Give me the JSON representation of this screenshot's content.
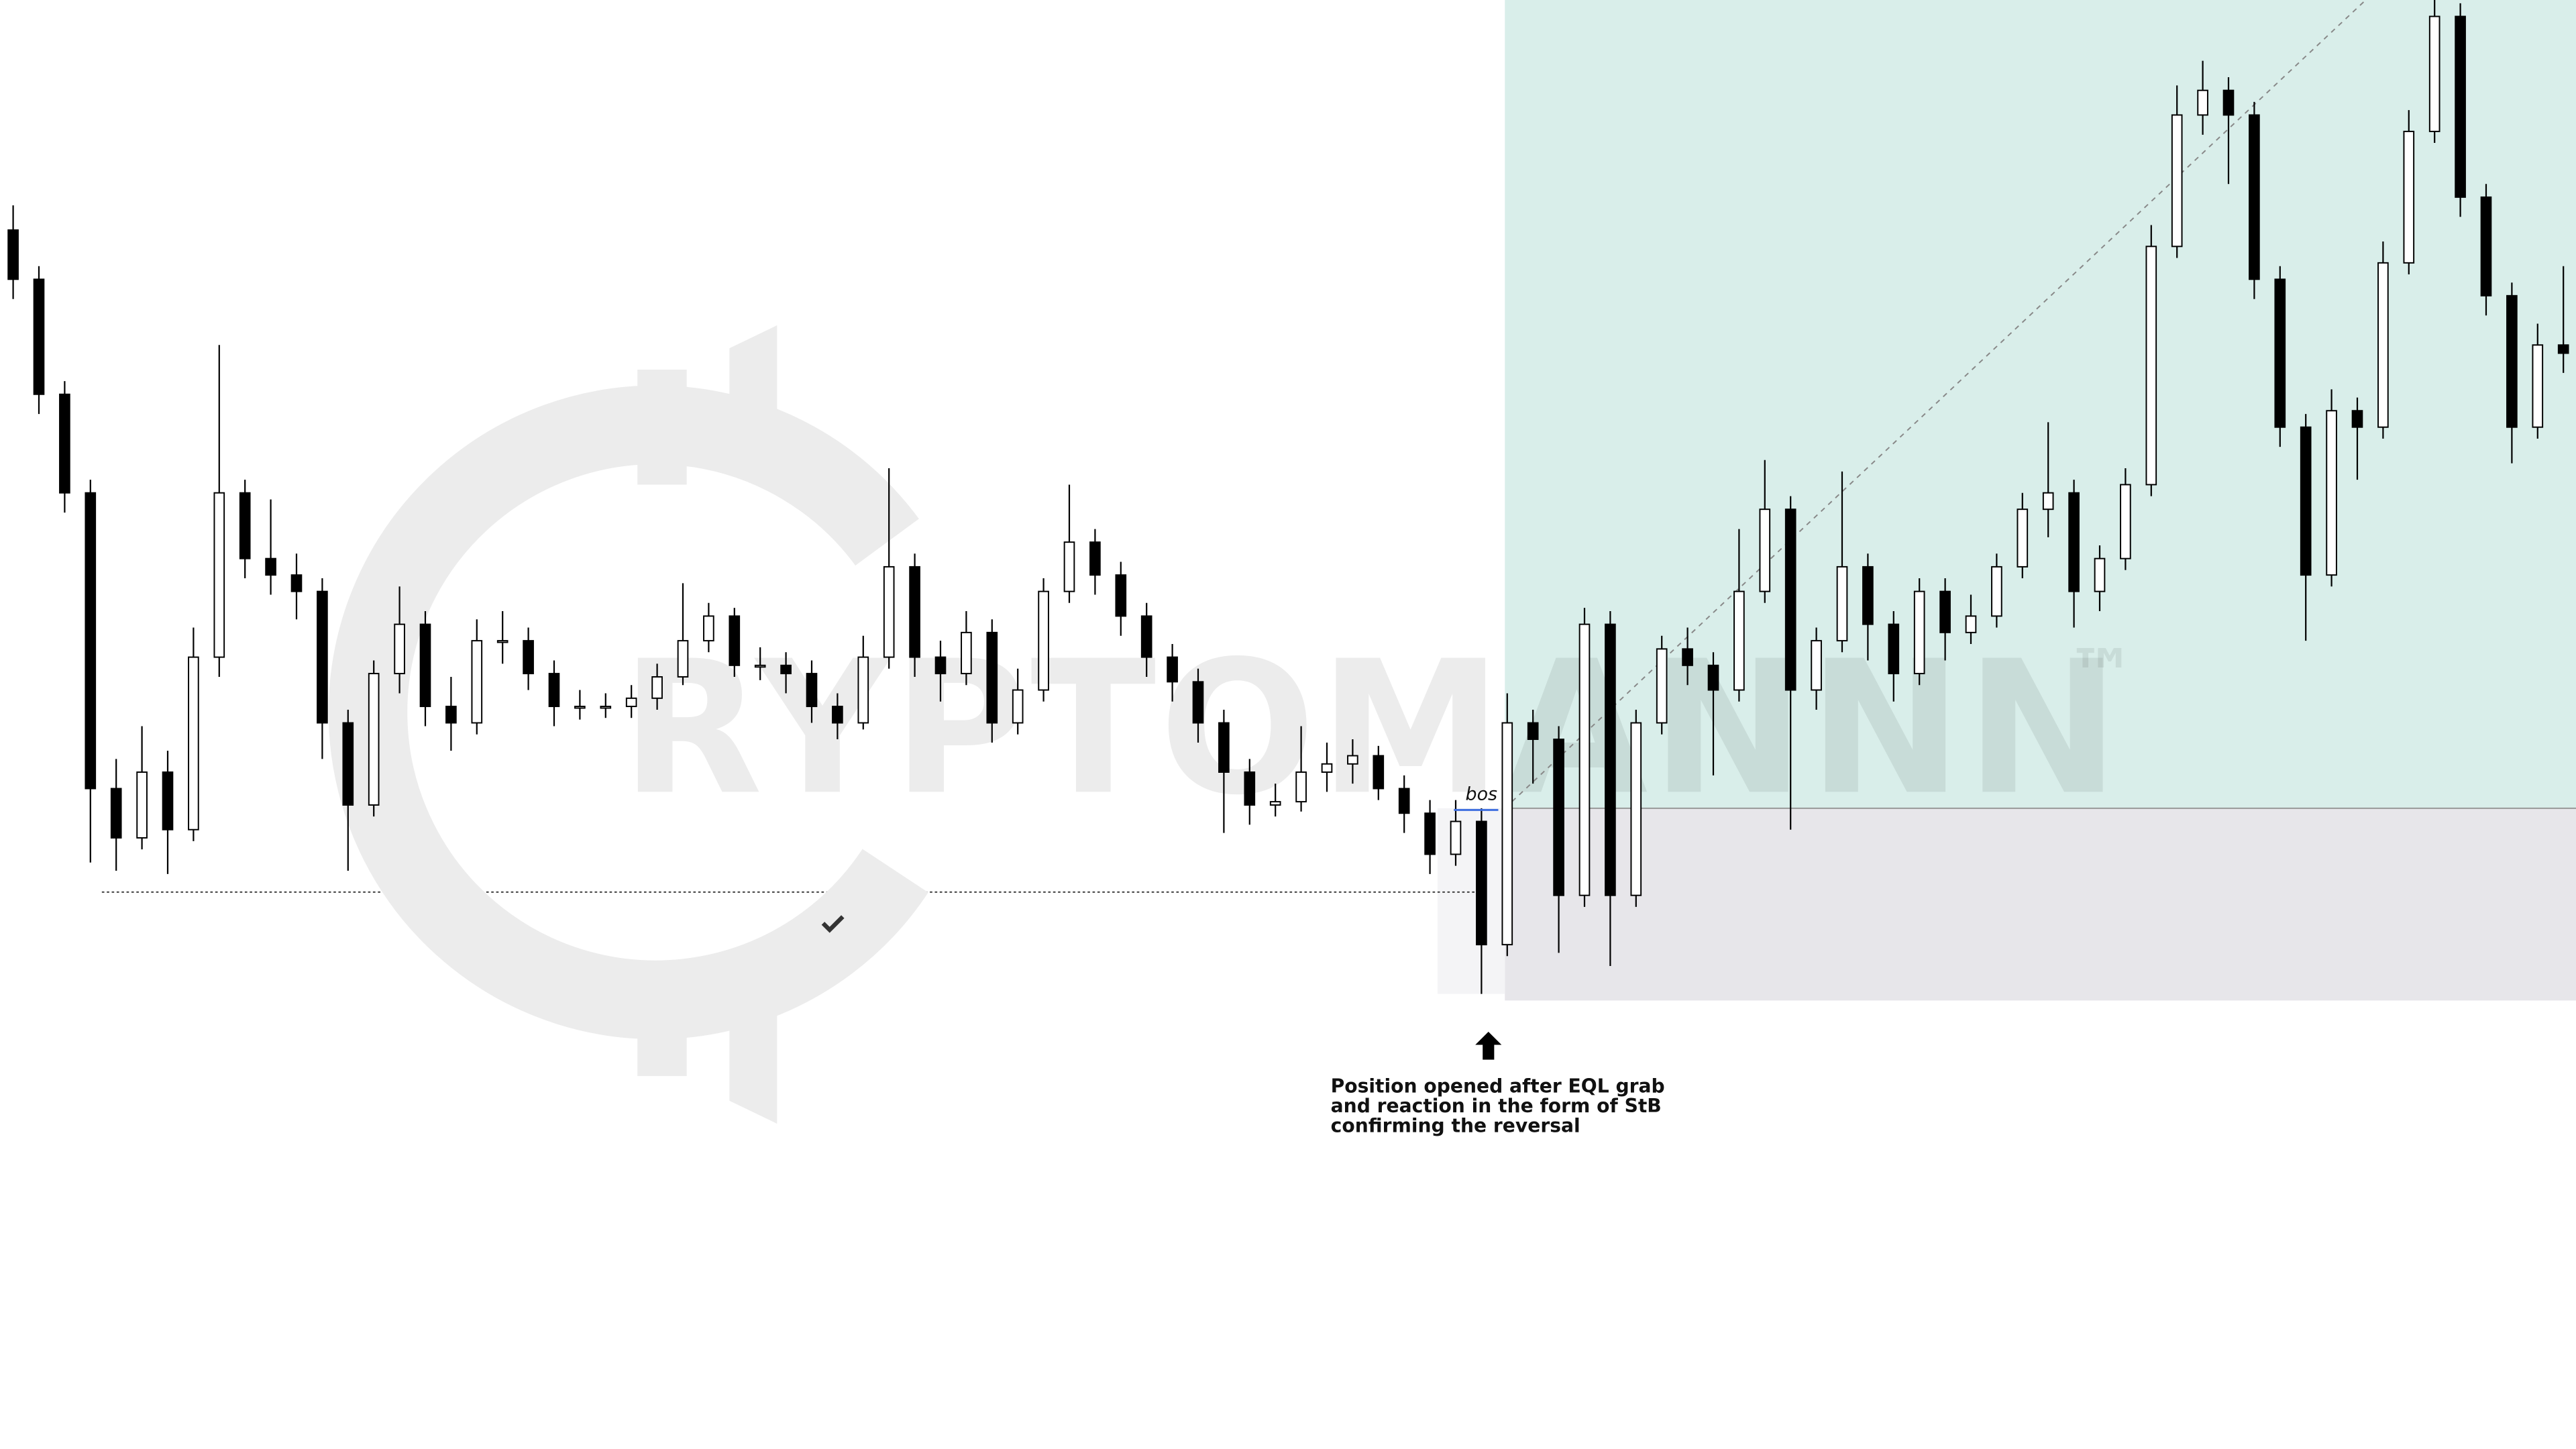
{
  "chart_data": {
    "type": "candlestick",
    "watermark": "RYPTOMANNN",
    "trademark": "™",
    "bos_label": "bos",
    "note": [
      "Position opened after EQL grab",
      "and reaction in the form of StB",
      "confirming the reversal"
    ],
    "ylim": [
      0,
      882
    ],
    "up_color": "#ffffff",
    "down_color": "#000000",
    "entry_level": 390,
    "stop_level": 273,
    "eql_level": 339,
    "open": [
      742,
      712,
      642,
      582,
      402,
      372,
      412,
      377,
      482,
      582,
      542,
      532,
      522,
      442,
      392,
      472,
      502,
      452,
      442,
      492,
      492,
      472,
      452,
      452,
      452,
      457,
      470,
      492,
      507,
      477,
      477,
      472,
      452,
      442,
      482,
      537,
      482,
      472,
      497,
      442,
      462,
      522,
      552,
      532,
      507,
      482,
      467,
      442,
      412,
      392,
      394,
      412,
      417,
      422,
      402,
      387,
      362,
      382,
      307,
      442,
      432,
      337,
      502,
      337,
      442,
      487,
      477,
      462,
      522,
      572,
      462,
      492,
      537,
      502,
      472,
      522,
      497,
      507,
      537,
      572,
      582,
      522,
      542,
      587,
      732,
      812,
      827,
      812,
      712,
      622,
      532,
      632,
      622,
      722,
      802,
      872,
      762,
      702,
      622,
      672
    ],
    "high": [
      757,
      720,
      650,
      590,
      420,
      440,
      425,
      500,
      672,
      590,
      578,
      545,
      530,
      450,
      480,
      525,
      510,
      470,
      505,
      510,
      500,
      480,
      462,
      460,
      465,
      478,
      527,
      515,
      512,
      488,
      485,
      480,
      460,
      495,
      597,
      545,
      492,
      510,
      505,
      475,
      530,
      587,
      560,
      540,
      515,
      490,
      475,
      450,
      420,
      405,
      440,
      430,
      432,
      428,
      410,
      395,
      395,
      390,
      460,
      450,
      440,
      512,
      510,
      450,
      495,
      500,
      485,
      560,
      602,
      580,
      500,
      595,
      545,
      510,
      530,
      530,
      520,
      545,
      582,
      625,
      590,
      550,
      597,
      745,
      830,
      845,
      835,
      820,
      720,
      630,
      645,
      640,
      735,
      815,
      882,
      880,
      770,
      710,
      685,
      720
    ],
    "low": [
      700,
      630,
      570,
      357,
      352,
      365,
      350,
      370,
      470,
      530,
      520,
      505,
      420,
      352,
      385,
      460,
      440,
      425,
      435,
      478,
      462,
      440,
      444,
      445,
      445,
      450,
      465,
      485,
      470,
      468,
      460,
      442,
      432,
      438,
      475,
      470,
      455,
      465,
      430,
      435,
      455,
      515,
      520,
      495,
      470,
      455,
      430,
      375,
      380,
      385,
      388,
      400,
      405,
      395,
      375,
      350,
      355,
      277,
      300,
      405,
      302,
      330,
      294,
      330,
      435,
      465,
      410,
      455,
      515,
      377,
      450,
      485,
      480,
      455,
      465,
      480,
      490,
      500,
      530,
      555,
      500,
      510,
      535,
      580,
      725,
      800,
      770,
      700,
      610,
      492,
      525,
      590,
      615,
      715,
      795,
      750,
      690,
      600,
      615,
      655
    ],
    "close": [
      712,
      642,
      582,
      402,
      372,
      412,
      377,
      482,
      582,
      542,
      532,
      522,
      442,
      392,
      472,
      502,
      452,
      442,
      492,
      492,
      472,
      452,
      452,
      452,
      457,
      470,
      492,
      507,
      477,
      477,
      472,
      452,
      442,
      482,
      537,
      482,
      472,
      497,
      442,
      462,
      522,
      552,
      532,
      507,
      482,
      467,
      442,
      412,
      392,
      394,
      412,
      417,
      422,
      402,
      387,
      362,
      382,
      307,
      442,
      432,
      337,
      502,
      337,
      442,
      487,
      477,
      462,
      522,
      572,
      462,
      492,
      537,
      502,
      472,
      522,
      497,
      507,
      537,
      572,
      582,
      522,
      542,
      587,
      732,
      812,
      827,
      812,
      712,
      622,
      532,
      632,
      622,
      722,
      802,
      872,
      762,
      702,
      622,
      672,
      667
    ]
  }
}
